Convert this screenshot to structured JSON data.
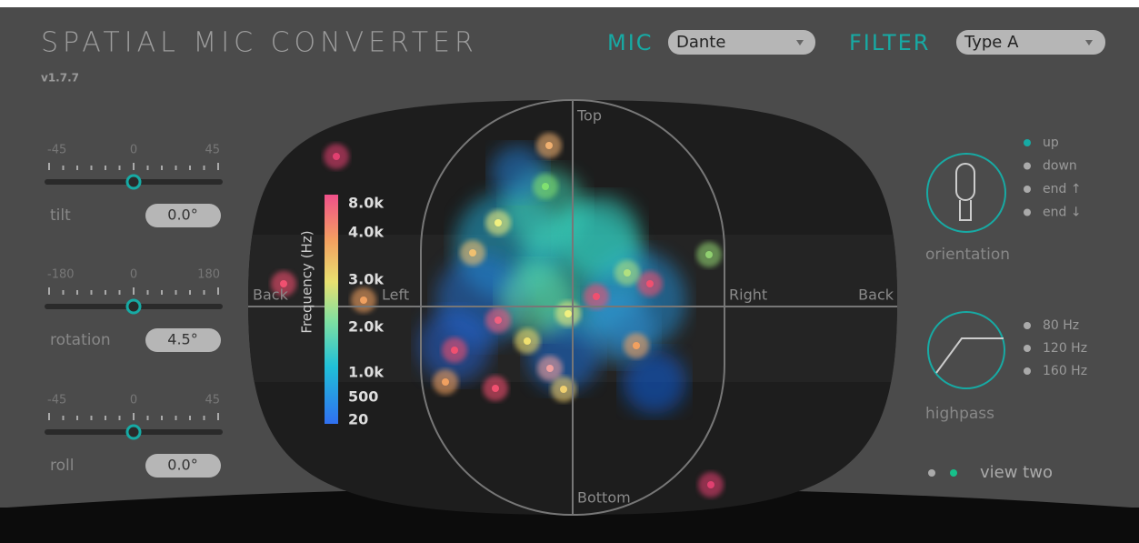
{
  "header": {
    "title": "SPATIAL MIC CONVERTER",
    "version": "v1.7.7"
  },
  "mic": {
    "label": "MIC",
    "value": "Dante"
  },
  "filter": {
    "label": "FILTER",
    "value": "Type A"
  },
  "sliders": [
    {
      "scale": [
        "-45",
        "0",
        "45"
      ],
      "name": "tilt",
      "value": "0.0°"
    },
    {
      "scale": [
        "-180",
        "0",
        "180"
      ],
      "name": "rotation",
      "value": "4.5°"
    },
    {
      "scale": [
        "-45",
        "0",
        "45"
      ],
      "name": "roll",
      "value": "0.0°"
    }
  ],
  "display": {
    "top": "Top",
    "bottom": "Bottom",
    "left": "Left",
    "right": "Right",
    "back_left": "Back",
    "back_right": "Back",
    "colorbar": {
      "title": "Frequency (Hz)",
      "ticks": [
        "8.0k",
        "4.0k",
        "3.0k",
        "2.0k",
        "1.0k",
        "500",
        "20"
      ]
    }
  },
  "orientation": {
    "label": "orientation",
    "options": [
      "up",
      "down",
      "end ↑",
      "end ↓"
    ]
  },
  "highpass": {
    "label": "highpass",
    "options": [
      "80 Hz",
      "120 Hz",
      "160 Hz"
    ]
  },
  "view": {
    "label": "view two"
  }
}
